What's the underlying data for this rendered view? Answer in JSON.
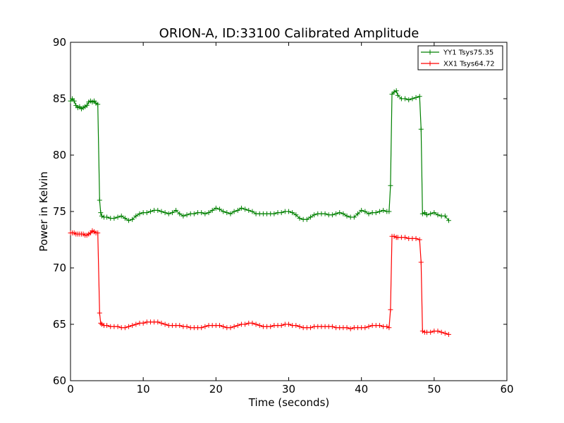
{
  "chart_data": {
    "type": "line",
    "title": "ORION-A, ID:33100 Calibrated Amplitude",
    "xlabel": "Time (seconds)",
    "ylabel": "Power in Kelvin",
    "xlim": [
      0,
      60
    ],
    "ylim": [
      60,
      90
    ],
    "xticks": [
      "0",
      "10",
      "20",
      "30",
      "40",
      "50",
      "60"
    ],
    "yticks": [
      "60",
      "65",
      "70",
      "75",
      "80",
      "85",
      "90"
    ],
    "grid": false,
    "legend_position": "top-right",
    "marker": "+",
    "series": [
      {
        "name": "YY1 Tsys75.35",
        "color": "#008000",
        "x": [
          0.0,
          0.25,
          0.5,
          0.75,
          1.0,
          1.25,
          1.5,
          1.75,
          2.0,
          2.25,
          2.5,
          2.75,
          3.0,
          3.25,
          3.5,
          3.75,
          4.0,
          4.15,
          4.3,
          4.6,
          5.0,
          5.5,
          6.0,
          6.5,
          7.0,
          7.5,
          8.0,
          8.5,
          9.0,
          9.5,
          10.0,
          10.5,
          11.0,
          11.5,
          12.0,
          12.5,
          13.0,
          13.5,
          14.0,
          14.5,
          15.0,
          15.5,
          16.0,
          16.5,
          17.0,
          17.5,
          18.0,
          18.5,
          19.0,
          19.5,
          20.0,
          20.5,
          21.0,
          21.5,
          22.0,
          22.5,
          23.0,
          23.5,
          24.0,
          24.5,
          25.0,
          25.5,
          26.0,
          26.5,
          27.0,
          27.5,
          28.0,
          28.5,
          29.0,
          29.5,
          30.0,
          30.5,
          31.0,
          31.5,
          32.0,
          32.5,
          33.0,
          33.5,
          34.0,
          34.5,
          35.0,
          35.5,
          36.0,
          36.5,
          37.0,
          37.5,
          38.0,
          38.5,
          39.0,
          39.5,
          40.0,
          40.5,
          41.0,
          41.5,
          42.0,
          42.5,
          43.0,
          43.5,
          43.8,
          44.0,
          44.2,
          44.5,
          44.8,
          45.0,
          45.5,
          46.0,
          46.5,
          47.0,
          47.5,
          48.0,
          48.2,
          48.4,
          48.7,
          49.0,
          49.5,
          50.0,
          50.5,
          51.0,
          51.5,
          52.0
        ],
        "y": [
          84.8,
          85.0,
          84.8,
          84.4,
          84.2,
          84.3,
          84.1,
          84.2,
          84.3,
          84.4,
          84.7,
          84.8,
          84.7,
          84.8,
          84.6,
          84.5,
          76.0,
          74.9,
          74.6,
          74.5,
          74.5,
          74.4,
          74.4,
          74.5,
          74.6,
          74.4,
          74.2,
          74.3,
          74.6,
          74.8,
          74.9,
          74.9,
          75.0,
          75.1,
          75.1,
          75.0,
          74.9,
          74.8,
          74.9,
          75.1,
          74.8,
          74.6,
          74.7,
          74.8,
          74.8,
          74.9,
          74.9,
          74.8,
          74.9,
          75.1,
          75.3,
          75.2,
          75.0,
          74.9,
          74.8,
          75.0,
          75.1,
          75.3,
          75.2,
          75.1,
          75.0,
          74.8,
          74.8,
          74.8,
          74.8,
          74.8,
          74.8,
          74.9,
          74.9,
          75.0,
          75.0,
          74.9,
          74.7,
          74.4,
          74.3,
          74.3,
          74.5,
          74.7,
          74.8,
          74.8,
          74.8,
          74.7,
          74.7,
          74.8,
          74.9,
          74.8,
          74.6,
          74.5,
          74.5,
          74.8,
          75.1,
          75.0,
          74.8,
          74.9,
          74.9,
          75.0,
          75.1,
          75.0,
          75.0,
          77.3,
          85.4,
          85.6,
          85.7,
          85.3,
          85.0,
          85.0,
          84.9,
          85.0,
          85.1,
          85.2,
          82.3,
          74.8,
          74.9,
          74.7,
          74.8,
          74.9,
          74.7,
          74.6,
          74.6,
          74.2
        ]
      },
      {
        "name": "XX1 Tsys64.72",
        "color": "#ff0000",
        "x": [
          0.0,
          0.25,
          0.5,
          0.75,
          1.0,
          1.25,
          1.5,
          1.75,
          2.0,
          2.25,
          2.5,
          2.75,
          3.0,
          3.25,
          3.5,
          3.75,
          4.0,
          4.15,
          4.3,
          4.6,
          5.0,
          5.5,
          6.0,
          6.5,
          7.0,
          7.5,
          8.0,
          8.5,
          9.0,
          9.5,
          10.0,
          10.5,
          11.0,
          11.5,
          12.0,
          12.5,
          13.0,
          13.5,
          14.0,
          14.5,
          15.0,
          15.5,
          16.0,
          16.5,
          17.0,
          17.5,
          18.0,
          18.5,
          19.0,
          19.5,
          20.0,
          20.5,
          21.0,
          21.5,
          22.0,
          22.5,
          23.0,
          23.5,
          24.0,
          24.5,
          25.0,
          25.5,
          26.0,
          26.5,
          27.0,
          27.5,
          28.0,
          28.5,
          29.0,
          29.5,
          30.0,
          30.5,
          31.0,
          31.5,
          32.0,
          32.5,
          33.0,
          33.5,
          34.0,
          34.5,
          35.0,
          35.5,
          36.0,
          36.5,
          37.0,
          37.5,
          38.0,
          38.5,
          39.0,
          39.5,
          40.0,
          40.5,
          41.0,
          41.5,
          42.0,
          42.5,
          43.0,
          43.5,
          43.8,
          44.0,
          44.2,
          44.5,
          44.8,
          45.0,
          45.5,
          46.0,
          46.5,
          47.0,
          47.5,
          48.0,
          48.2,
          48.4,
          48.7,
          49.0,
          49.5,
          50.0,
          50.5,
          51.0,
          51.5,
          52.0
        ],
        "y": [
          73.1,
          73.1,
          73.1,
          73.0,
          73.0,
          73.0,
          73.0,
          73.0,
          72.9,
          72.9,
          73.0,
          73.1,
          73.3,
          73.2,
          73.1,
          73.1,
          66.0,
          65.1,
          65.0,
          64.9,
          64.9,
          64.8,
          64.8,
          64.8,
          64.7,
          64.7,
          64.8,
          64.9,
          65.0,
          65.1,
          65.1,
          65.2,
          65.2,
          65.2,
          65.2,
          65.1,
          65.0,
          64.9,
          64.9,
          64.9,
          64.9,
          64.8,
          64.8,
          64.7,
          64.7,
          64.7,
          64.7,
          64.8,
          64.9,
          64.9,
          64.9,
          64.9,
          64.8,
          64.7,
          64.7,
          64.8,
          64.9,
          65.0,
          65.0,
          65.1,
          65.1,
          65.0,
          64.9,
          64.8,
          64.8,
          64.8,
          64.9,
          64.9,
          64.9,
          65.0,
          65.0,
          64.9,
          64.9,
          64.8,
          64.7,
          64.7,
          64.7,
          64.8,
          64.8,
          64.8,
          64.8,
          64.8,
          64.8,
          64.7,
          64.7,
          64.7,
          64.7,
          64.6,
          64.7,
          64.7,
          64.7,
          64.7,
          64.8,
          64.9,
          64.9,
          64.9,
          64.8,
          64.8,
          64.7,
          66.3,
          72.8,
          72.8,
          72.7,
          72.7,
          72.7,
          72.7,
          72.6,
          72.6,
          72.6,
          72.5,
          70.5,
          64.4,
          64.3,
          64.3,
          64.3,
          64.4,
          64.4,
          64.3,
          64.2,
          64.1
        ]
      }
    ]
  }
}
